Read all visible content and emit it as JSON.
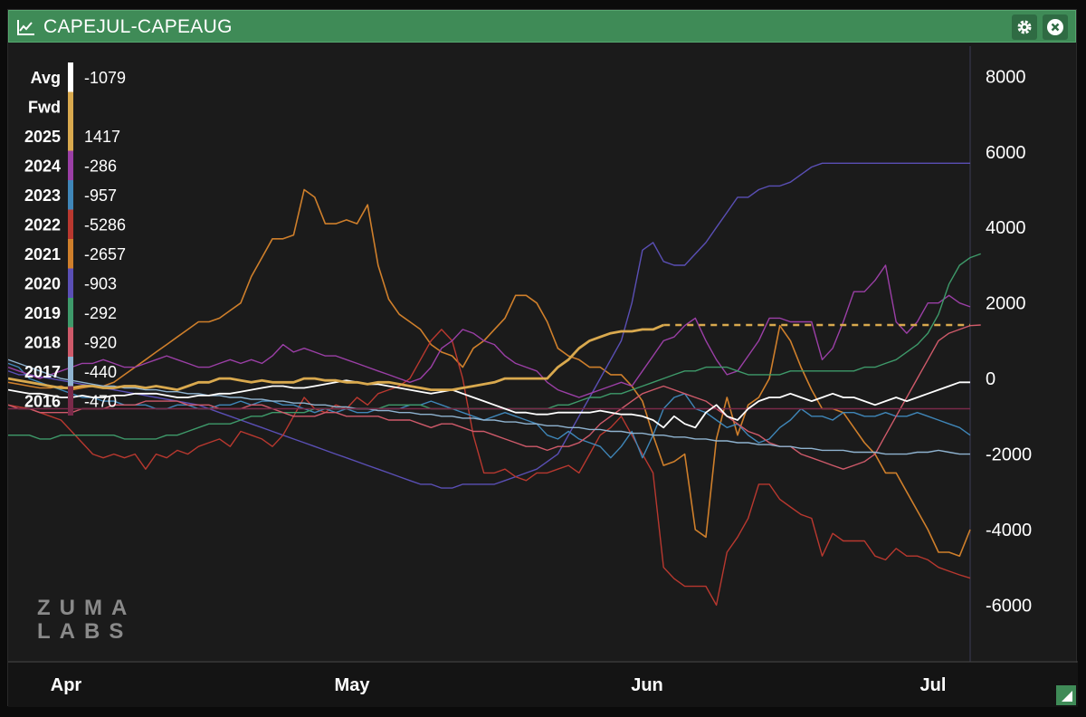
{
  "window": {
    "title": "CAPEJUL-CAPEAUG",
    "accent": "#3f8b57",
    "icons": [
      "line-chart-icon",
      "gear-icon",
      "close-icon",
      "resize-handle-icon"
    ]
  },
  "logo": {
    "line1": "ZUMA",
    "line2": "LABS"
  },
  "chart_data": {
    "type": "line",
    "title": "CAPEJUL-CAPEAUG",
    "xlabel": "",
    "ylabel": "",
    "x_tick_labels": [
      "Apr",
      "May",
      "Jun",
      "Jul"
    ],
    "y_ticks": [
      8000,
      6000,
      4000,
      2000,
      0,
      -2000,
      -4000,
      -6000
    ],
    "ylim": [
      -7500,
      8800
    ],
    "legend_position": "left",
    "grid": false,
    "legend": [
      {
        "name": "Avg",
        "value": "-1079",
        "color": "#ffffff"
      },
      {
        "name": "Fwd",
        "value": "",
        "color": "#d9a94e"
      },
      {
        "name": "2025",
        "value": "1417",
        "color": "#d9a94e"
      },
      {
        "name": "2024",
        "value": "-286",
        "color": "#9b3fa6"
      },
      {
        "name": "2023",
        "value": "-957",
        "color": "#3f86b8"
      },
      {
        "name": "2022",
        "value": "-5286",
        "color": "#b9382f"
      },
      {
        "name": "2021",
        "value": "-2657",
        "color": "#cf7f2b"
      },
      {
        "name": "2020",
        "value": "-903",
        "color": "#5a4fb5"
      },
      {
        "name": "2019",
        "value": "-292",
        "color": "#3e9a6a"
      },
      {
        "name": "2018",
        "value": "-920",
        "color": "#cf5a6a"
      },
      {
        "name": "2017",
        "value": "-440",
        "color": "#8fb3d0"
      },
      {
        "name": "2016",
        "value": "-470",
        "color": "#7a2a4a"
      }
    ],
    "series": [
      {
        "name": "2021",
        "color": "#cf7f2b",
        "width": 1.6,
        "y": [
          -100,
          -150,
          -200,
          -250,
          -250,
          -200,
          -300,
          -250,
          -200,
          -200,
          -100,
          100,
          300,
          500,
          700,
          900,
          1100,
          1300,
          1500,
          1500,
          1600,
          1800,
          2000,
          2700,
          3200,
          3700,
          3700,
          3800,
          5000,
          4800,
          4100,
          4100,
          4200,
          4100,
          4600,
          3000,
          2100,
          1700,
          1500,
          1300,
          900,
          700,
          600,
          300,
          800,
          1000,
          1300,
          1600,
          2200,
          2200,
          2000,
          1500,
          800,
          600,
          500,
          300,
          300,
          100,
          100,
          -200,
          -600,
          -1500,
          -2300,
          -2200,
          -2000,
          -4000,
          -4200,
          -1600,
          -500,
          -1500,
          -700,
          -500,
          0,
          1400,
          1000,
          300,
          -300,
          -800,
          -800,
          -900,
          -1300,
          -1700,
          -2000,
          -2500,
          -2500,
          -3000,
          -3500,
          -4000,
          -4600,
          -4600,
          -4700,
          -4000
        ]
      },
      {
        "name": "2020",
        "color": "#5a4fb5",
        "width": 1.4,
        "y": [
          200,
          100,
          100,
          50,
          0,
          -50,
          -100,
          -150,
          -200,
          -250,
          -300,
          -350,
          -400,
          -450,
          -500,
          -550,
          -600,
          -650,
          -700,
          -800,
          -900,
          -1000,
          -1100,
          -1200,
          -1300,
          -1400,
          -1500,
          -1600,
          -1700,
          -1800,
          -1900,
          -2000,
          -2100,
          -2200,
          -2300,
          -2400,
          -2500,
          -2600,
          -2700,
          -2800,
          -2800,
          -2900,
          -2900,
          -2800,
          -2800,
          -2800,
          -2800,
          -2700,
          -2600,
          -2500,
          -2400,
          -2200,
          -2000,
          -1500,
          -1000,
          -500,
          0,
          500,
          1000,
          2000,
          3400,
          3600,
          3100,
          3000,
          3000,
          3300,
          3600,
          4000,
          4400,
          4800,
          4800,
          5000,
          5100,
          5100,
          5200,
          5400,
          5600,
          5700,
          5700,
          5700,
          5700,
          5700,
          5700,
          5700,
          5700,
          5700,
          5700,
          5700,
          5700,
          5700,
          5700,
          5700
        ]
      },
      {
        "name": "2022",
        "color": "#b9382f",
        "width": 1.4,
        "y": [
          -700,
          -750,
          -800,
          -900,
          -1000,
          -1100,
          -1400,
          -1700,
          -2000,
          -2100,
          -2000,
          -2100,
          -2000,
          -2400,
          -2000,
          -2100,
          -1900,
          -2000,
          -1800,
          -1700,
          -1600,
          -1800,
          -1400,
          -1500,
          -1600,
          -1800,
          -1500,
          -1000,
          -500,
          -800,
          -900,
          -700,
          -800,
          -500,
          -700,
          -400,
          -300,
          -200,
          0,
          500,
          1000,
          1300,
          1000,
          0,
          -1500,
          -2500,
          -2500,
          -2400,
          -2600,
          -2700,
          -2500,
          -2500,
          -2400,
          -2300,
          -2500,
          -2000,
          -1500,
          -1300,
          -1000,
          -1500,
          -2000,
          -2500,
          -5000,
          -5300,
          -5500,
          -5500,
          -5500,
          -6000,
          -4600,
          -4200,
          -3700,
          -2800,
          -2800,
          -3200,
          -3400,
          -3600,
          -3700,
          -4700,
          -4100,
          -4300,
          -4300,
          -4300,
          -4700,
          -4800,
          -4500,
          -4700,
          -4700,
          -4800,
          -5000,
          -5100,
          -5200,
          -5286
        ]
      },
      {
        "name": "2023",
        "color": "#3f86b8",
        "width": 1.4,
        "y": [
          400,
          300,
          0,
          -100,
          -200,
          -300,
          -400,
          -500,
          -500,
          -600,
          -600,
          -700,
          -700,
          -700,
          -800,
          -800,
          -700,
          -700,
          -800,
          -800,
          -700,
          -700,
          -600,
          -700,
          -600,
          -600,
          -700,
          -700,
          -800,
          -900,
          -800,
          -900,
          -800,
          -900,
          -900,
          -800,
          -800,
          -800,
          -700,
          -700,
          -600,
          -700,
          -800,
          -900,
          -1000,
          -1100,
          -1000,
          -900,
          -1000,
          -1100,
          -1200,
          -1500,
          -1600,
          -1400,
          -1600,
          -1700,
          -1800,
          -2100,
          -1800,
          -1400,
          -2100,
          -1500,
          -800,
          -500,
          -400,
          -800,
          -900,
          -1100,
          -1300,
          -1200,
          -1500,
          -1700,
          -1600,
          -1300,
          -1100,
          -800,
          -1000,
          -1000,
          -1100,
          -900,
          -900,
          -1000,
          -1000,
          -900,
          -1000,
          -1000,
          -900,
          -1000,
          -1100,
          -1200,
          -1300,
          -1500
        ]
      },
      {
        "name": "2024",
        "color": "#9b3fa6",
        "width": 1.4,
        "y": [
          300,
          200,
          100,
          0,
          100,
          200,
          300,
          400,
          400,
          500,
          400,
          300,
          300,
          400,
          500,
          600,
          500,
          400,
          300,
          300,
          400,
          500,
          400,
          500,
          400,
          600,
          900,
          700,
          800,
          700,
          600,
          600,
          500,
          400,
          300,
          200,
          100,
          0,
          -100,
          0,
          300,
          800,
          1000,
          1300,
          1200,
          1000,
          900,
          600,
          400,
          300,
          200,
          -100,
          -300,
          -400,
          -500,
          -400,
          -300,
          -200,
          -100,
          -200,
          200,
          600,
          1000,
          1100,
          1400,
          1600,
          1000,
          500,
          100,
          200,
          600,
          1000,
          1600,
          1600,
          1500,
          1500,
          1500,
          500,
          800,
          1500,
          2300,
          2300,
          2600,
          3000,
          1500,
          1200,
          1500,
          2000,
          2000,
          2200,
          2000,
          1900
        ]
      },
      {
        "name": "2019",
        "color": "#3e9a6a",
        "width": 1.4,
        "y": [
          -1500,
          -1500,
          -1500,
          -1600,
          -1600,
          -1500,
          -1500,
          -1500,
          -1500,
          -1500,
          -1500,
          -1600,
          -1600,
          -1600,
          -1600,
          -1500,
          -1500,
          -1400,
          -1300,
          -1200,
          -1200,
          -1200,
          -1100,
          -1000,
          -1000,
          -900,
          -900,
          -900,
          -900,
          -800,
          -800,
          -800,
          -800,
          -800,
          -800,
          -800,
          -700,
          -700,
          -700,
          -700,
          -800,
          -800,
          -800,
          -800,
          -800,
          -800,
          -800,
          -800,
          -800,
          -800,
          -800,
          -800,
          -700,
          -700,
          -600,
          -500,
          -500,
          -400,
          -400,
          -300,
          -200,
          -100,
          0,
          100,
          200,
          200,
          300,
          300,
          300,
          200,
          100,
          100,
          100,
          100,
          200,
          200,
          200,
          200,
          200,
          200,
          200,
          300,
          300,
          400,
          500,
          700,
          900,
          1200,
          1700,
          2500,
          3000,
          3200,
          3300
        ]
      },
      {
        "name": "2018",
        "color": "#cf5a6a",
        "width": 1.4,
        "y": [
          -700,
          -800,
          -800,
          -900,
          -900,
          -900,
          -900,
          -800,
          -800,
          -800,
          -700,
          -700,
          -700,
          -600,
          -600,
          -600,
          -600,
          -700,
          -700,
          -700,
          -800,
          -800,
          -800,
          -700,
          -700,
          -800,
          -900,
          -1000,
          -1000,
          -1000,
          -900,
          -900,
          -1000,
          -1000,
          -1000,
          -1000,
          -1100,
          -1100,
          -1100,
          -1200,
          -1300,
          -1200,
          -1200,
          -1300,
          -1400,
          -1400,
          -1500,
          -1600,
          -1700,
          -1800,
          -1800,
          -1900,
          -1800,
          -1800,
          -1700,
          -1500,
          -1200,
          -1000,
          -800,
          -600,
          -400,
          -300,
          -200,
          -300,
          -400,
          -500,
          -600,
          -800,
          -1000,
          -1200,
          -1400,
          -1500,
          -1700,
          -1800,
          -1800,
          -2000,
          -2100,
          -2200,
          -2300,
          -2400,
          -2300,
          -2200,
          -2000,
          -1500,
          -1000,
          -500,
          0,
          500,
          1000,
          1200,
          1300,
          1400,
          1417
        ]
      },
      {
        "name": "2017",
        "color": "#8fb3d0",
        "width": 1.4,
        "y": [
          500,
          400,
          300,
          200,
          100,
          0,
          -50,
          -100,
          -150,
          -200,
          -200,
          -250,
          -250,
          -300,
          -300,
          -350,
          -350,
          -400,
          -400,
          -450,
          -450,
          -500,
          -500,
          -550,
          -550,
          -600,
          -600,
          -650,
          -650,
          -700,
          -700,
          -750,
          -750,
          -800,
          -800,
          -850,
          -850,
          -900,
          -900,
          -950,
          -950,
          -1000,
          -1000,
          -1050,
          -1050,
          -1100,
          -1100,
          -1150,
          -1150,
          -1200,
          -1200,
          -1250,
          -1250,
          -1300,
          -1300,
          -1350,
          -1350,
          -1400,
          -1400,
          -1450,
          -1450,
          -1500,
          -1500,
          -1550,
          -1550,
          -1600,
          -1600,
          -1650,
          -1650,
          -1700,
          -1700,
          -1750,
          -1750,
          -1800,
          -1800,
          -1850,
          -1850,
          -1900,
          -1900,
          -1900,
          -1950,
          -1950,
          -1950,
          -2000,
          -2000,
          -2000,
          -1950,
          -1950,
          -1900,
          -1950,
          -2000,
          -2000
        ]
      },
      {
        "name": "2016",
        "color": "#7a2a4a",
        "width": 1.4,
        "y": [
          -800,
          -800,
          -800,
          -800,
          -800,
          -800,
          -800,
          -800,
          -800,
          -800,
          -800,
          -800,
          -800,
          -800,
          -800,
          -800,
          -800,
          -800,
          -800,
          -800,
          -800,
          -800,
          -800,
          -800,
          -800,
          -800,
          -800,
          -800,
          -800,
          -800,
          -800,
          -800,
          -800,
          -800,
          -800,
          -800,
          -800,
          -800,
          -800,
          -800,
          -800,
          -800,
          -800,
          -800,
          -800,
          -800,
          -800,
          -800,
          -800,
          -800,
          -800,
          -800,
          -800,
          -800,
          -800,
          -800,
          -800,
          -800,
          -800,
          -800,
          -800,
          -800,
          -800,
          -800,
          -800,
          -800,
          -800,
          -800,
          -800,
          -800,
          -800,
          -800,
          -800,
          -800,
          -800,
          -800,
          -800,
          -800,
          -800,
          -800,
          -800,
          -800,
          -800,
          -800,
          -800,
          -800,
          -800,
          -800,
          -800,
          -800,
          -800,
          -800
        ]
      },
      {
        "name": "Avg",
        "color": "#ffffff",
        "width": 1.8,
        "y": [
          -300,
          -350,
          -400,
          -400,
          -450,
          -500,
          -500,
          -450,
          -500,
          -500,
          -450,
          -450,
          -400,
          -400,
          -400,
          -450,
          -500,
          -500,
          -450,
          -450,
          -400,
          -400,
          -350,
          -300,
          -250,
          -200,
          -200,
          -250,
          -250,
          -200,
          -150,
          -100,
          -50,
          -100,
          -150,
          -150,
          -200,
          -250,
          -300,
          -350,
          -400,
          -350,
          -300,
          -400,
          -500,
          -600,
          -700,
          -800,
          -900,
          -900,
          -950,
          -950,
          -900,
          -900,
          -900,
          -900,
          -850,
          -900,
          -950,
          -950,
          -1000,
          -1100,
          -1300,
          -1000,
          -1200,
          -1300,
          -900,
          -700,
          -1000,
          -1100,
          -800,
          -600,
          -500,
          -500,
          -400,
          -500,
          -600,
          -500,
          -400,
          -500,
          -500,
          -600,
          -700,
          -600,
          -500,
          -600,
          -500,
          -400,
          -300,
          -200,
          -100,
          -100
        ]
      },
      {
        "name": "2025",
        "color": "#d9a94e",
        "width": 2.8,
        "y": [
          0,
          -50,
          -100,
          -150,
          -200,
          -250,
          -250,
          -200,
          -200,
          -250,
          -250,
          -200,
          -200,
          -250,
          -200,
          -250,
          -300,
          -200,
          -100,
          -100,
          0,
          0,
          -50,
          -100,
          -50,
          -100,
          -100,
          -100,
          0,
          0,
          -50,
          -50,
          -100,
          -100,
          -150,
          -100,
          -100,
          -150,
          -200,
          -250,
          -300,
          -300,
          -300,
          -250,
          -200,
          -150,
          -100,
          0,
          0,
          0,
          0,
          0,
          300,
          500,
          800,
          1000,
          1100,
          1200,
          1250,
          1250,
          1300,
          1300,
          1417
        ]
      }
    ],
    "fwd": {
      "name": "Fwd",
      "value": 1417
    }
  }
}
